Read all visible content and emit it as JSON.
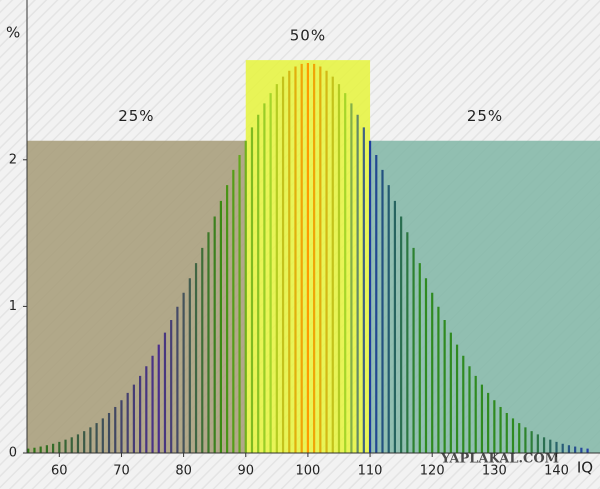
{
  "chart_data": {
    "type": "stem",
    "y_label": "%",
    "x_label": "IQ",
    "watermark": "YAPLAKAL.COM",
    "xlim": [
      54.8,
      147
    ],
    "ylim": [
      0,
      3.09
    ],
    "xticks": [
      60,
      70,
      80,
      90,
      100,
      110,
      120,
      130,
      140
    ],
    "yticks": [
      0,
      1,
      2
    ],
    "x": [
      55,
      56,
      57,
      58,
      59,
      60,
      61,
      62,
      63,
      64,
      65,
      66,
      67,
      68,
      69,
      70,
      71,
      72,
      73,
      74,
      75,
      76,
      77,
      78,
      79,
      80,
      81,
      82,
      83,
      84,
      85,
      86,
      87,
      88,
      89,
      90,
      91,
      92,
      93,
      94,
      95,
      96,
      97,
      98,
      99,
      100,
      101,
      102,
      103,
      104,
      105,
      106,
      107,
      108,
      109,
      110,
      111,
      112,
      113,
      114,
      115,
      116,
      117,
      118,
      119,
      120,
      121,
      122,
      123,
      124,
      125,
      126,
      127,
      128,
      129,
      130,
      131,
      132,
      133,
      134,
      135,
      136,
      137,
      138,
      139,
      140,
      141,
      142,
      143,
      144,
      145
    ],
    "values": [
      0.03,
      0.036,
      0.044,
      0.053,
      0.063,
      0.076,
      0.091,
      0.107,
      0.127,
      0.149,
      0.175,
      0.204,
      0.236,
      0.273,
      0.314,
      0.36,
      0.41,
      0.466,
      0.526,
      0.592,
      0.663,
      0.739,
      0.821,
      0.907,
      0.998,
      1.093,
      1.192,
      1.295,
      1.399,
      1.506,
      1.613,
      1.72,
      1.827,
      1.931,
      2.033,
      2.13,
      2.221,
      2.307,
      2.385,
      2.455,
      2.516,
      2.567,
      2.607,
      2.636,
      2.654,
      2.66,
      2.654,
      2.636,
      2.607,
      2.567,
      2.516,
      2.455,
      2.385,
      2.307,
      2.221,
      2.13,
      2.033,
      1.931,
      1.827,
      1.72,
      1.613,
      1.506,
      1.399,
      1.295,
      1.192,
      1.093,
      0.998,
      0.907,
      0.821,
      0.739,
      0.663,
      0.592,
      0.526,
      0.466,
      0.41,
      0.36,
      0.314,
      0.273,
      0.236,
      0.204,
      0.175,
      0.149,
      0.127,
      0.107,
      0.091,
      0.076,
      0.063,
      0.053,
      0.044,
      0.036,
      0.03
    ],
    "color_stops": [
      {
        "at": 55,
        "color": "#2f7a12"
      },
      {
        "at": 76,
        "color": "#4a2e8c"
      },
      {
        "at": 86,
        "color": "#3a8a12"
      },
      {
        "at": 94,
        "color": "#a6d62a"
      },
      {
        "at": 100,
        "color": "#ff9a00"
      },
      {
        "at": 106,
        "color": "#a6d62a"
      },
      {
        "at": 110,
        "color": "#1f3ea0"
      },
      {
        "at": 118,
        "color": "#2f8a20"
      },
      {
        "at": 134,
        "color": "#2f8a20"
      },
      {
        "at": 145,
        "color": "#2442a8"
      }
    ],
    "regions": [
      {
        "share": 25,
        "label": "25%",
        "x": [
          54.8,
          90
        ],
        "top": 2.13,
        "color": "#a69b77"
      },
      {
        "share": 50,
        "label": "50%",
        "x": [
          90,
          110
        ],
        "top": 2.68,
        "color": "#e6f53c"
      },
      {
        "share": 25,
        "label": "25%",
        "x": [
          110,
          147
        ],
        "top": 2.13,
        "color": "#80b6a6"
      }
    ],
    "label_color": "#3a2fa0"
  }
}
